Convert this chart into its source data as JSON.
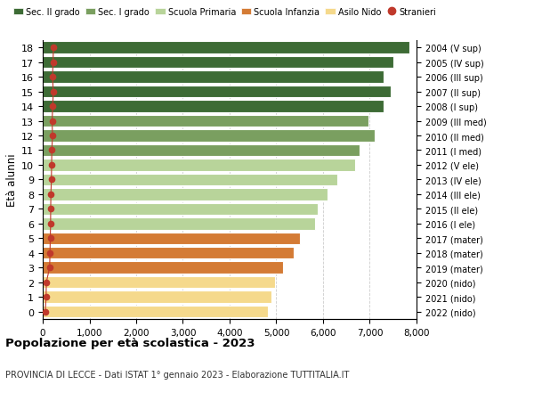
{
  "ages": [
    18,
    17,
    16,
    15,
    14,
    13,
    12,
    11,
    10,
    9,
    8,
    7,
    6,
    5,
    4,
    3,
    2,
    1,
    0
  ],
  "labels_right": [
    "2004 (V sup)",
    "2005 (IV sup)",
    "2006 (III sup)",
    "2007 (II sup)",
    "2008 (I sup)",
    "2009 (III med)",
    "2010 (II med)",
    "2011 (I med)",
    "2012 (V ele)",
    "2013 (IV ele)",
    "2014 (III ele)",
    "2015 (II ele)",
    "2016 (I ele)",
    "2017 (mater)",
    "2018 (mater)",
    "2019 (mater)",
    "2020 (nido)",
    "2021 (nido)",
    "2022 (nido)"
  ],
  "bar_values": [
    7850,
    7500,
    7300,
    7450,
    7300,
    6980,
    7100,
    6780,
    6680,
    6300,
    6100,
    5880,
    5820,
    5500,
    5380,
    5150,
    4970,
    4900,
    4820
  ],
  "stranieri_values": [
    230,
    220,
    210,
    225,
    215,
    200,
    210,
    195,
    190,
    185,
    175,
    170,
    168,
    162,
    155,
    148,
    78,
    72,
    55
  ],
  "bar_colors": [
    "#3d6b35",
    "#3d6b35",
    "#3d6b35",
    "#3d6b35",
    "#3d6b35",
    "#7a9f60",
    "#7a9f60",
    "#7a9f60",
    "#b8d49a",
    "#b8d49a",
    "#b8d49a",
    "#b8d49a",
    "#b8d49a",
    "#d47b35",
    "#d47b35",
    "#d47b35",
    "#f5d98c",
    "#f5d98c",
    "#f5d98c"
  ],
  "legend_labels": [
    "Sec. II grado",
    "Sec. I grado",
    "Scuola Primaria",
    "Scuola Infanzia",
    "Asilo Nido",
    "Stranieri"
  ],
  "legend_colors": [
    "#3d6b35",
    "#7a9f60",
    "#b8d49a",
    "#d47b35",
    "#f5d98c",
    "#c0392b"
  ],
  "ylabel_left": "Età alunni",
  "title": "Popolazione per età scolastica - 2023",
  "subtitle": "PROVINCIA DI LECCE - Dati ISTAT 1° gennaio 2023 - Elaborazione TUTTITALIA.IT",
  "xlim": [
    0,
    8000
  ],
  "xticks": [
    0,
    1000,
    2000,
    3000,
    4000,
    5000,
    6000,
    7000,
    8000
  ],
  "xtick_labels": [
    "0",
    "1,000",
    "2,000",
    "3,000",
    "4,000",
    "5,000",
    "6,000",
    "7,000",
    "8,000"
  ],
  "stranieri_color": "#c0392b",
  "background_color": "#ffffff",
  "grid_color": "#cccccc"
}
